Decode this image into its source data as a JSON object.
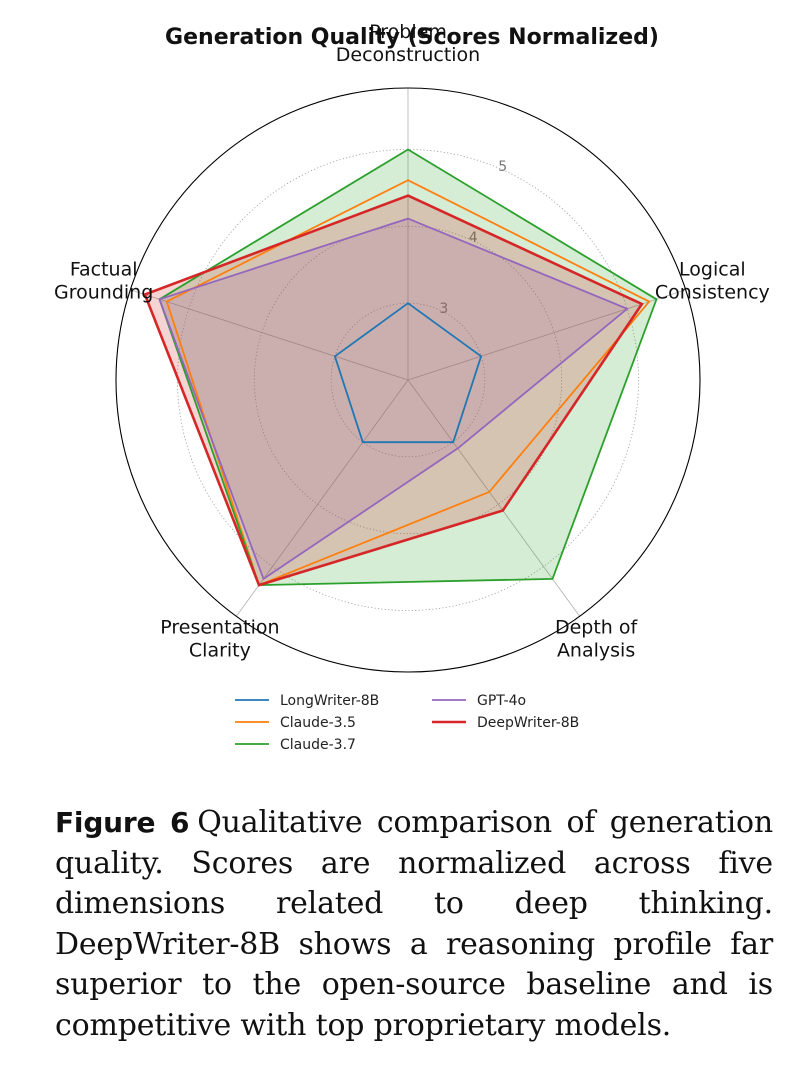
{
  "chart_data": {
    "type": "radar",
    "title": "Generation Quality (Scores Normalized)",
    "axes": [
      {
        "label_lines": [
          "Problem",
          "Deconstruction"
        ]
      },
      {
        "label_lines": [
          "Logical",
          "Consistency"
        ]
      },
      {
        "label_lines": [
          "Depth of",
          "Analysis"
        ]
      },
      {
        "label_lines": [
          "Presentation",
          "Clarity"
        ]
      },
      {
        "label_lines": [
          "Factual",
          "Grounding"
        ]
      }
    ],
    "rlim": [
      2,
      5.8
    ],
    "rticks": [
      3,
      4,
      5
    ],
    "rtick_labels": [
      "3",
      "4",
      "5"
    ],
    "grid": true,
    "legend_position": "bottom",
    "series": [
      {
        "name": "LongWriter-8B",
        "color": "#1f77b4",
        "fill": false,
        "values": [
          3.0,
          3.0,
          3.0,
          3.0,
          3.0
        ]
      },
      {
        "name": "Claude-3.5",
        "color": "#ff7f0e",
        "fill": false,
        "values": [
          4.6,
          5.3,
          3.8,
          5.3,
          5.3
        ]
      },
      {
        "name": "Claude-3.7",
        "color": "#2ca02c",
        "fill": true,
        "values": [
          5.0,
          5.4,
          5.2,
          5.3,
          5.4
        ]
      },
      {
        "name": "GPT-4o",
        "color": "#9467bd",
        "fill": true,
        "values": [
          4.1,
          5.0,
          3.1,
          5.2,
          5.4
        ]
      },
      {
        "name": "DeepWriter-8B",
        "color": "#d62728",
        "fill": true,
        "values": [
          4.4,
          5.2,
          4.1,
          5.3,
          5.6
        ]
      }
    ]
  },
  "caption": {
    "label": "Figure 6",
    "text": "Qualitative comparison of generation quality. Scores are normalized across five dimensions related to deep thinking. DeepWriter-8B shows a reasoning profile far superior to the open-source baseline and is competitive with top proprietary models."
  }
}
